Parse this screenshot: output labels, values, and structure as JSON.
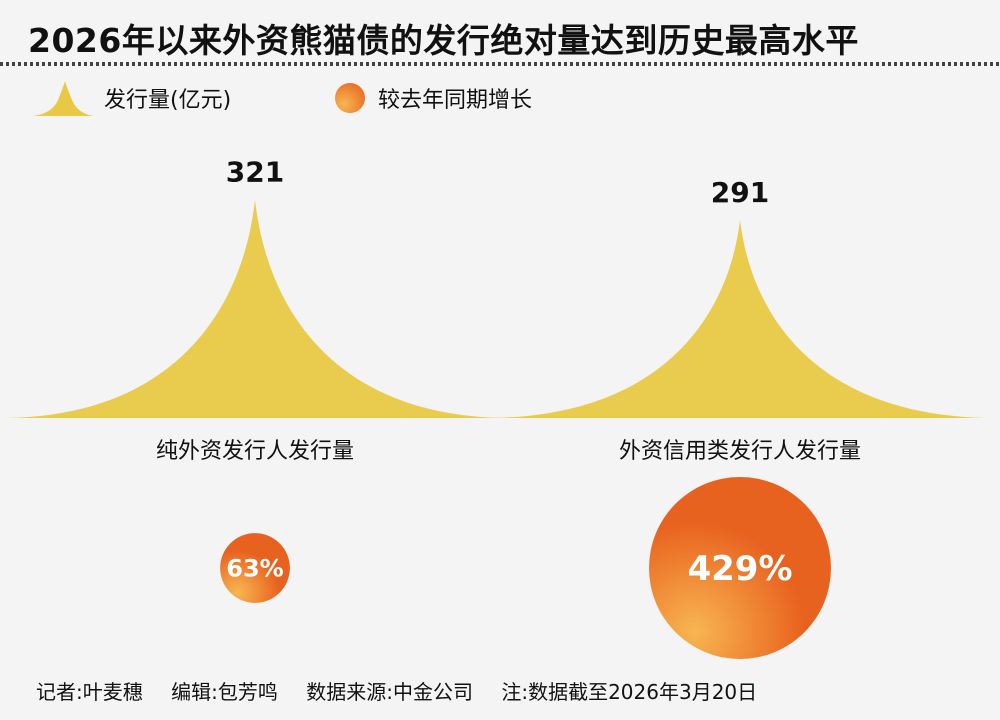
{
  "title": "2026年以来外资熊猫债的发行绝对量达到历史最高水平",
  "legend": {
    "volume_label": "发行量(亿元)",
    "growth_label": "较去年同期增长"
  },
  "colors": {
    "volume": "#e8c845",
    "growth_light": "#f8b651",
    "growth_dark": "#e8621f",
    "growth_text": "#ffffff"
  },
  "chart_data": {
    "type": "bar",
    "categories": [
      "纯外资发行人发行量",
      "外资信用类发行人发行量"
    ],
    "series": [
      {
        "name": "发行量(亿元)",
        "values": [
          321,
          291
        ],
        "value_labels": [
          "321",
          "291"
        ]
      },
      {
        "name": "较去年同期增长",
        "values": [
          63,
          429
        ],
        "value_labels": [
          "63%",
          "429%"
        ]
      }
    ]
  },
  "footer": {
    "reporter": "记者:叶麦穗",
    "editor": "编辑:包芳鸣",
    "source": "数据来源:中金公司",
    "note": "注:数据截至2026年3月20日"
  }
}
